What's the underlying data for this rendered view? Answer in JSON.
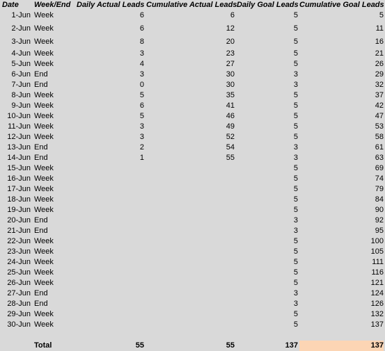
{
  "headers": {
    "date": "Date",
    "week_end": "Week/End",
    "daily_actual": "Daily Actual Leads",
    "cumulative_actual": "Cumulative Actual Leads",
    "daily_goal": "Daily Goal Leads",
    "cumulative_goal": "Cumulative Goal Leads"
  },
  "rows": [
    {
      "date": "1-Jun",
      "we": "Week",
      "da": "6",
      "ca": "6",
      "dg": "5",
      "cg": "5"
    },
    {
      "date": "2-Jun",
      "we": "Week",
      "da": "6",
      "ca": "12",
      "dg": "5",
      "cg": "11"
    },
    {
      "date": "3-Jun",
      "we": "Week",
      "da": "8",
      "ca": "20",
      "dg": "5",
      "cg": "16"
    },
    {
      "date": "4-Jun",
      "we": "Week",
      "da": "3",
      "ca": "23",
      "dg": "5",
      "cg": "21"
    },
    {
      "date": "5-Jun",
      "we": "Week",
      "da": "4",
      "ca": "27",
      "dg": "5",
      "cg": "26"
    },
    {
      "date": "6-Jun",
      "we": "End",
      "da": "3",
      "ca": "30",
      "dg": "3",
      "cg": "29"
    },
    {
      "date": "7-Jun",
      "we": "End",
      "da": "0",
      "ca": "30",
      "dg": "3",
      "cg": "32"
    },
    {
      "date": "8-Jun",
      "we": "Week",
      "da": "5",
      "ca": "35",
      "dg": "5",
      "cg": "37"
    },
    {
      "date": "9-Jun",
      "we": "Week",
      "da": "6",
      "ca": "41",
      "dg": "5",
      "cg": "42"
    },
    {
      "date": "10-Jun",
      "we": "Week",
      "da": "5",
      "ca": "46",
      "dg": "5",
      "cg": "47"
    },
    {
      "date": "11-Jun",
      "we": "Week",
      "da": "3",
      "ca": "49",
      "dg": "5",
      "cg": "53"
    },
    {
      "date": "12-Jun",
      "we": "Week",
      "da": "3",
      "ca": "52",
      "dg": "5",
      "cg": "58"
    },
    {
      "date": "13-Jun",
      "we": "End",
      "da": "2",
      "ca": "54",
      "dg": "3",
      "cg": "61"
    },
    {
      "date": "14-Jun",
      "we": "End",
      "da": "1",
      "ca": "55",
      "dg": "3",
      "cg": "63"
    },
    {
      "date": "15-Jun",
      "we": "Week",
      "da": "",
      "ca": "",
      "dg": "5",
      "cg": "69"
    },
    {
      "date": "16-Jun",
      "we": "Week",
      "da": "",
      "ca": "",
      "dg": "5",
      "cg": "74"
    },
    {
      "date": "17-Jun",
      "we": "Week",
      "da": "",
      "ca": "",
      "dg": "5",
      "cg": "79"
    },
    {
      "date": "18-Jun",
      "we": "Week",
      "da": "",
      "ca": "",
      "dg": "5",
      "cg": "84"
    },
    {
      "date": "19-Jun",
      "we": "Week",
      "da": "",
      "ca": "",
      "dg": "5",
      "cg": "90"
    },
    {
      "date": "20-Jun",
      "we": "End",
      "da": "",
      "ca": "",
      "dg": "3",
      "cg": "92"
    },
    {
      "date": "21-Jun",
      "we": "End",
      "da": "",
      "ca": "",
      "dg": "3",
      "cg": "95"
    },
    {
      "date": "22-Jun",
      "we": "Week",
      "da": "",
      "ca": "",
      "dg": "5",
      "cg": "100"
    },
    {
      "date": "23-Jun",
      "we": "Week",
      "da": "",
      "ca": "",
      "dg": "5",
      "cg": "105"
    },
    {
      "date": "24-Jun",
      "we": "Week",
      "da": "",
      "ca": "",
      "dg": "5",
      "cg": "111"
    },
    {
      "date": "25-Jun",
      "we": "Week",
      "da": "",
      "ca": "",
      "dg": "5",
      "cg": "116"
    },
    {
      "date": "26-Jun",
      "we": "Week",
      "da": "",
      "ca": "",
      "dg": "5",
      "cg": "121"
    },
    {
      "date": "27-Jun",
      "we": "End",
      "da": "",
      "ca": "",
      "dg": "3",
      "cg": "124"
    },
    {
      "date": "28-Jun",
      "we": "End",
      "da": "",
      "ca": "",
      "dg": "3",
      "cg": "126"
    },
    {
      "date": "29-Jun",
      "we": "Week",
      "da": "",
      "ca": "",
      "dg": "5",
      "cg": "132"
    },
    {
      "date": "30-Jun",
      "we": "Week",
      "da": "",
      "ca": "",
      "dg": "5",
      "cg": "137"
    }
  ],
  "total": {
    "label": "Total",
    "daily_actual": "55",
    "cumulative_actual": "55",
    "daily_goal": "137",
    "cumulative_goal": "137"
  },
  "colors": {
    "sheet_background": "#d9d9d9",
    "total_highlight": "#fcd5b4"
  }
}
